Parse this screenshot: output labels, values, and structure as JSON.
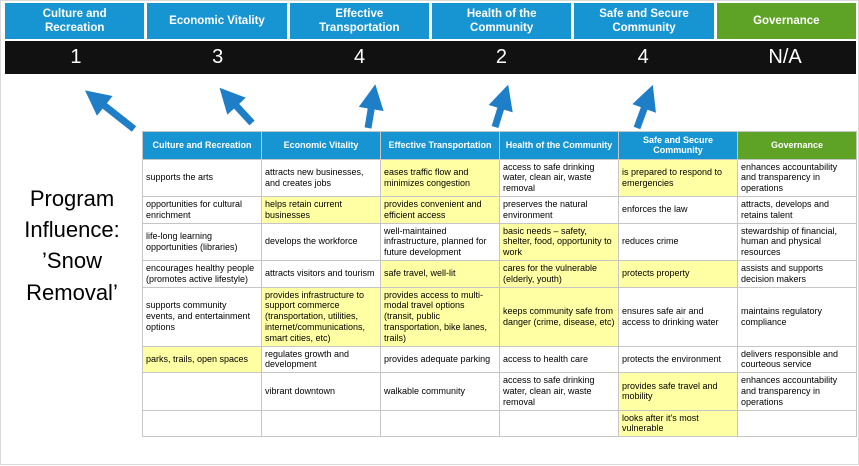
{
  "title": "Program Influence: ’Snow Removal’",
  "colors": {
    "header_blue": "#1795d3",
    "header_green": "#5ea226",
    "score_bg": "#111111",
    "score_text": "#ffffff",
    "highlight_yellow": "#ffffa3",
    "arrow_blue": "#1f7ec8",
    "grid_border": "#c6c6c6"
  },
  "scoreboard": {
    "categories": [
      {
        "label": "Culture and Recreation",
        "score": "1",
        "theme": "blue"
      },
      {
        "label": "Economic Vitality",
        "score": "3",
        "theme": "blue"
      },
      {
        "label": "Effective Transportation",
        "score": "4",
        "theme": "blue"
      },
      {
        "label": "Health of the Community",
        "score": "2",
        "theme": "blue"
      },
      {
        "label": "Safe and Secure Community",
        "score": "4",
        "theme": "blue"
      },
      {
        "label": "Governance",
        "score": "N/A",
        "theme": "green"
      }
    ]
  },
  "table": {
    "headers": [
      {
        "label": "Culture and Recreation",
        "theme": "blue"
      },
      {
        "label": "Economic Vitality",
        "theme": "blue"
      },
      {
        "label": "Effective Transportation",
        "theme": "blue"
      },
      {
        "label": "Health of the Community",
        "theme": "blue"
      },
      {
        "label": "Safe and Secure Community",
        "theme": "blue"
      },
      {
        "label": "Governance",
        "theme": "green"
      }
    ],
    "rows": [
      {
        "cells": [
          {
            "text": "supports the arts",
            "highlight": false
          },
          {
            "text": "attracts new businesses, and creates jobs",
            "highlight": false
          },
          {
            "text": "eases traffic flow and minimizes congestion",
            "highlight": true
          },
          {
            "text": "access to safe drinking water, clean air, waste removal",
            "highlight": false
          },
          {
            "text": "is prepared to respond to emergencies",
            "highlight": true
          },
          {
            "text": "enhances accountability and transparency in operations",
            "highlight": false
          }
        ]
      },
      {
        "cells": [
          {
            "text": "opportunities for cultural enrichment",
            "highlight": false
          },
          {
            "text": "helps retain current businesses",
            "highlight": true
          },
          {
            "text": "provides convenient and efficient access",
            "highlight": true
          },
          {
            "text": "preserves the natural environment",
            "highlight": false
          },
          {
            "text": "enforces the law",
            "highlight": false
          },
          {
            "text": "attracts, develops and retains talent",
            "highlight": false
          }
        ]
      },
      {
        "cells": [
          {
            "text": "life-long learning opportunities (libraries)",
            "highlight": false
          },
          {
            "text": "develops the workforce",
            "highlight": false
          },
          {
            "text": "well-maintained infrastructure, planned for future development",
            "highlight": false
          },
          {
            "text": "basic needs – safety, shelter, food, opportunity to work",
            "highlight": true
          },
          {
            "text": "reduces crime",
            "highlight": false
          },
          {
            "text": "stewardship of financial, human and physical resources",
            "highlight": false
          }
        ]
      },
      {
        "cells": [
          {
            "text": "encourages healthy people (promotes active lifestyle)",
            "highlight": false
          },
          {
            "text": "attracts visitors and tourism",
            "highlight": false
          },
          {
            "text": "safe travel, well-lit",
            "highlight": true
          },
          {
            "text": "cares for the vulnerable (elderly, youth)",
            "highlight": true
          },
          {
            "text": "protects property",
            "highlight": true
          },
          {
            "text": "assists and supports decision makers",
            "highlight": false
          }
        ]
      },
      {
        "cells": [
          {
            "text": "supports community events, and entertainment options",
            "highlight": false
          },
          {
            "text": "provides infrastructure to support commerce (transportation, utilities, internet/communications, smart cities, etc)",
            "highlight": true
          },
          {
            "text": "provides access to multi-modal travel options (transit, public transportation, bike lanes, trails)",
            "highlight": true
          },
          {
            "text": "keeps community safe from danger (crime, disease, etc)",
            "highlight": true
          },
          {
            "text": "ensures safe air and access to drinking water",
            "highlight": false
          },
          {
            "text": "maintains regulatory compliance",
            "highlight": false
          }
        ]
      },
      {
        "cells": [
          {
            "text": "parks, trails, open spaces",
            "highlight": true
          },
          {
            "text": "regulates growth and development",
            "highlight": false
          },
          {
            "text": "provides adequate parking",
            "highlight": false
          },
          {
            "text": "access to health care",
            "highlight": false
          },
          {
            "text": "protects the environment",
            "highlight": false
          },
          {
            "text": "delivers responsible and courteous service",
            "highlight": false
          }
        ]
      },
      {
        "cells": [
          {
            "text": "",
            "highlight": false
          },
          {
            "text": "vibrant downtown",
            "highlight": false
          },
          {
            "text": "walkable community",
            "highlight": false
          },
          {
            "text": "access to safe drinking water, clean air, waste removal",
            "highlight": false
          },
          {
            "text": "provides safe travel and mobility",
            "highlight": true
          },
          {
            "text": "enhances accountability and transparency in operations",
            "highlight": false
          }
        ]
      },
      {
        "cells": [
          {
            "text": "",
            "highlight": false
          },
          {
            "text": "",
            "highlight": false
          },
          {
            "text": "",
            "highlight": false
          },
          {
            "text": "",
            "highlight": false
          },
          {
            "text": "looks after it's most vulnerable",
            "highlight": true
          },
          {
            "text": "",
            "highlight": false
          }
        ]
      }
    ]
  }
}
